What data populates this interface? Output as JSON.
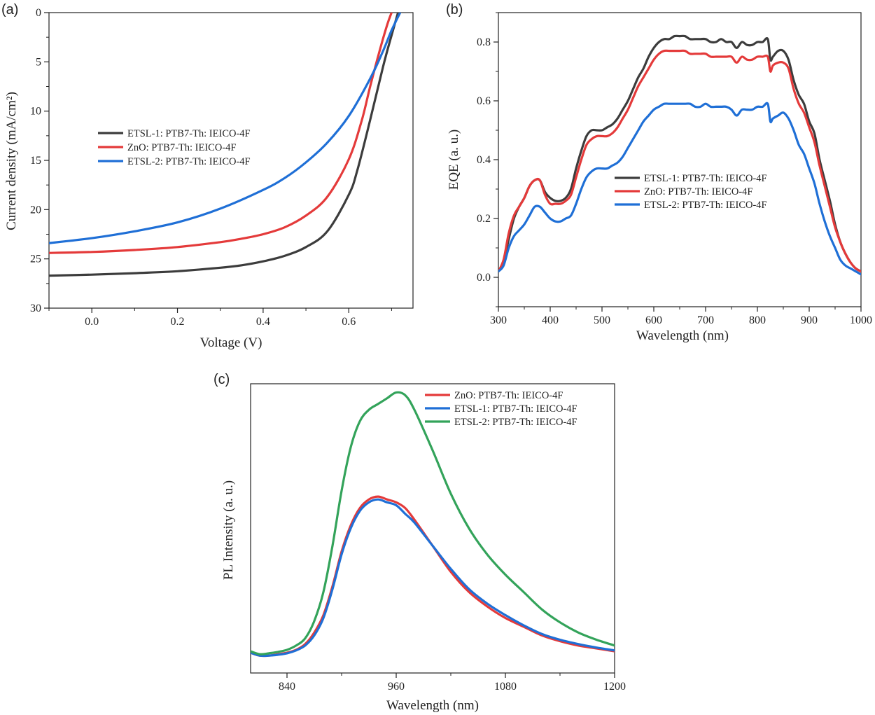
{
  "figure": {
    "colors": {
      "ETSL-1": "#3c3c3c",
      "ZnO": "#e43a3a",
      "ETSL-2": "#1f6fd6",
      "ETSL-2-PL": "#33a35a"
    }
  },
  "chart_data": [
    {
      "panel": "(a)",
      "type": "line",
      "title": "",
      "xlabel": "Voltage (V)",
      "ylabel": "Current density (mA/cm²)",
      "xlim": [
        -0.1,
        0.75
      ],
      "ylim": [
        30,
        0
      ],
      "y_inverted": true,
      "xticks": [
        "0.0",
        "0.2",
        "0.4",
        "0.6"
      ],
      "xtick_values": [
        0.0,
        0.2,
        0.4,
        0.6
      ],
      "yticks": [
        "0",
        "5",
        "10",
        "15",
        "20",
        "25",
        "30"
      ],
      "ytick_values": [
        0,
        5,
        10,
        15,
        20,
        25,
        30
      ],
      "legend_position": "middle-left",
      "series": [
        {
          "name": "ETSL-1: PTB7-Th: IEICO-4F",
          "color": "#3c3c3c",
          "x": [
            -0.1,
            0.0,
            0.1,
            0.2,
            0.3,
            0.35,
            0.4,
            0.45,
            0.5,
            0.55,
            0.6,
            0.62,
            0.65,
            0.68,
            0.7,
            0.715
          ],
          "y": [
            26.7,
            26.6,
            26.45,
            26.25,
            25.9,
            25.65,
            25.25,
            24.7,
            23.8,
            22.2,
            18.5,
            16.0,
            10.9,
            5.5,
            2.3,
            0
          ]
        },
        {
          "name": "ZnO: PTB7-Th: IEICO-4F",
          "color": "#e43a3a",
          "x": [
            -0.1,
            0.0,
            0.1,
            0.2,
            0.3,
            0.35,
            0.4,
            0.45,
            0.5,
            0.55,
            0.6,
            0.63,
            0.65,
            0.67,
            0.69,
            0.7
          ],
          "y": [
            24.4,
            24.3,
            24.1,
            23.8,
            23.3,
            22.95,
            22.5,
            21.8,
            20.6,
            18.7,
            14.9,
            11.0,
            7.5,
            4.2,
            1.2,
            0
          ]
        },
        {
          "name": "ETSL-2: PTB7-Th: IEICO-4F",
          "color": "#1f6fd6",
          "x": [
            -0.1,
            0.0,
            0.1,
            0.2,
            0.3,
            0.4,
            0.45,
            0.5,
            0.55,
            0.6,
            0.65,
            0.68,
            0.7,
            0.72
          ],
          "y": [
            23.4,
            22.9,
            22.2,
            21.3,
            19.9,
            18.0,
            16.8,
            15.2,
            13.2,
            10.5,
            6.7,
            3.9,
            1.8,
            0
          ]
        }
      ]
    },
    {
      "panel": "(b)",
      "type": "line",
      "title": "",
      "xlabel": "Wavelength (nm)",
      "ylabel": "EQE (a. u.)",
      "xlim": [
        300,
        1000
      ],
      "ylim": [
        -0.1,
        0.9
      ],
      "xticks": [
        "300",
        "400",
        "500",
        "600",
        "700",
        "800",
        "900",
        "1000"
      ],
      "xtick_values": [
        300,
        400,
        500,
        600,
        700,
        800,
        900,
        1000
      ],
      "yticks": [
        "0.0",
        "0.2",
        "0.4",
        "0.6",
        "0.8"
      ],
      "ytick_values": [
        0.0,
        0.2,
        0.4,
        0.6,
        0.8
      ],
      "legend_position": "center",
      "series": [
        {
          "name": "ETSL-1: PTB7-Th: IEICO-4F",
          "color": "#3c3c3c",
          "x": [
            300,
            310,
            320,
            330,
            340,
            350,
            360,
            370,
            380,
            390,
            400,
            410,
            420,
            430,
            440,
            450,
            460,
            470,
            480,
            490,
            500,
            510,
            520,
            530,
            540,
            550,
            560,
            570,
            580,
            590,
            600,
            610,
            620,
            630,
            640,
            650,
            660,
            670,
            680,
            690,
            700,
            710,
            720,
            730,
            740,
            750,
            760,
            770,
            780,
            790,
            800,
            810,
            820,
            825,
            830,
            840,
            850,
            860,
            870,
            880,
            890,
            900,
            910,
            920,
            930,
            940,
            950,
            960,
            970,
            980,
            990,
            1000
          ],
          "y": [
            0.02,
            0.05,
            0.13,
            0.2,
            0.24,
            0.27,
            0.31,
            0.33,
            0.33,
            0.29,
            0.27,
            0.26,
            0.26,
            0.27,
            0.3,
            0.37,
            0.43,
            0.48,
            0.5,
            0.5,
            0.5,
            0.51,
            0.52,
            0.54,
            0.57,
            0.6,
            0.64,
            0.68,
            0.71,
            0.75,
            0.78,
            0.8,
            0.81,
            0.81,
            0.82,
            0.82,
            0.82,
            0.81,
            0.81,
            0.81,
            0.81,
            0.8,
            0.8,
            0.81,
            0.8,
            0.8,
            0.78,
            0.8,
            0.79,
            0.79,
            0.8,
            0.8,
            0.81,
            0.74,
            0.75,
            0.77,
            0.77,
            0.74,
            0.67,
            0.62,
            0.59,
            0.53,
            0.49,
            0.4,
            0.33,
            0.26,
            0.18,
            0.12,
            0.08,
            0.05,
            0.03,
            0.02
          ]
        },
        {
          "name": "ZnO: PTB7-Th: IEICO-4F",
          "color": "#e43a3a",
          "x": [
            300,
            310,
            320,
            330,
            340,
            350,
            360,
            370,
            380,
            390,
            400,
            410,
            420,
            430,
            440,
            450,
            460,
            470,
            480,
            490,
            500,
            510,
            520,
            530,
            540,
            550,
            560,
            570,
            580,
            590,
            600,
            610,
            620,
            630,
            640,
            650,
            660,
            670,
            680,
            690,
            700,
            710,
            720,
            730,
            740,
            750,
            760,
            770,
            780,
            790,
            800,
            810,
            820,
            825,
            830,
            840,
            850,
            860,
            870,
            880,
            890,
            900,
            910,
            920,
            930,
            940,
            950,
            960,
            970,
            980,
            990,
            1000
          ],
          "y": [
            0.02,
            0.06,
            0.15,
            0.21,
            0.24,
            0.27,
            0.31,
            0.33,
            0.33,
            0.28,
            0.25,
            0.25,
            0.25,
            0.26,
            0.28,
            0.34,
            0.4,
            0.45,
            0.47,
            0.48,
            0.48,
            0.48,
            0.49,
            0.51,
            0.54,
            0.57,
            0.61,
            0.65,
            0.68,
            0.71,
            0.74,
            0.76,
            0.77,
            0.77,
            0.77,
            0.77,
            0.77,
            0.76,
            0.76,
            0.76,
            0.76,
            0.75,
            0.75,
            0.75,
            0.75,
            0.75,
            0.73,
            0.75,
            0.74,
            0.74,
            0.75,
            0.75,
            0.75,
            0.7,
            0.72,
            0.73,
            0.73,
            0.71,
            0.64,
            0.59,
            0.56,
            0.51,
            0.46,
            0.38,
            0.31,
            0.24,
            0.17,
            0.12,
            0.08,
            0.05,
            0.03,
            0.02
          ]
        },
        {
          "name": "ETSL-2: PTB7-Th: IEICO-4F",
          "color": "#1f6fd6",
          "x": [
            300,
            310,
            320,
            330,
            340,
            350,
            360,
            370,
            380,
            390,
            400,
            410,
            420,
            430,
            440,
            450,
            460,
            470,
            480,
            490,
            500,
            510,
            520,
            530,
            540,
            550,
            560,
            570,
            580,
            590,
            600,
            610,
            620,
            630,
            640,
            650,
            660,
            670,
            680,
            690,
            700,
            710,
            720,
            730,
            740,
            750,
            760,
            770,
            780,
            790,
            800,
            810,
            820,
            825,
            830,
            840,
            850,
            860,
            870,
            880,
            890,
            900,
            910,
            920,
            930,
            940,
            950,
            960,
            970,
            980,
            990,
            1000
          ],
          "y": [
            0.02,
            0.04,
            0.1,
            0.14,
            0.16,
            0.18,
            0.21,
            0.24,
            0.24,
            0.22,
            0.2,
            0.19,
            0.19,
            0.2,
            0.21,
            0.25,
            0.3,
            0.34,
            0.36,
            0.37,
            0.37,
            0.37,
            0.38,
            0.39,
            0.41,
            0.44,
            0.47,
            0.5,
            0.53,
            0.55,
            0.57,
            0.58,
            0.59,
            0.59,
            0.59,
            0.59,
            0.59,
            0.59,
            0.58,
            0.58,
            0.59,
            0.58,
            0.58,
            0.58,
            0.58,
            0.57,
            0.55,
            0.57,
            0.57,
            0.57,
            0.58,
            0.58,
            0.59,
            0.53,
            0.54,
            0.55,
            0.56,
            0.54,
            0.5,
            0.45,
            0.42,
            0.37,
            0.32,
            0.25,
            0.19,
            0.14,
            0.1,
            0.06,
            0.04,
            0.03,
            0.02,
            0.01
          ]
        }
      ]
    },
    {
      "panel": "(c)",
      "type": "line",
      "title": "",
      "xlabel": "Wavelength (nm)",
      "ylabel": "PL Intensity (a. u.)",
      "xlim": [
        800,
        1200
      ],
      "ylim": [
        0,
        1.0
      ],
      "y_ticks_hidden": true,
      "xticks": [
        "840",
        "960",
        "1080",
        "1200"
      ],
      "xtick_values": [
        840,
        960,
        1080,
        1200
      ],
      "legend_position": "top-right",
      "series": [
        {
          "name": "ZnO: PTB7-Th: IEICO-4F",
          "color": "#e43a3a",
          "x": [
            800,
            810,
            820,
            830,
            840,
            850,
            860,
            870,
            880,
            890,
            900,
            910,
            920,
            930,
            940,
            950,
            960,
            970,
            980,
            1000,
            1020,
            1040,
            1060,
            1080,
            1100,
            1120,
            1140,
            1160,
            1180,
            1200
          ],
          "y": [
            0.07,
            0.06,
            0.06,
            0.065,
            0.07,
            0.08,
            0.1,
            0.14,
            0.2,
            0.3,
            0.42,
            0.51,
            0.57,
            0.6,
            0.61,
            0.6,
            0.59,
            0.57,
            0.53,
            0.44,
            0.35,
            0.28,
            0.23,
            0.19,
            0.16,
            0.13,
            0.11,
            0.095,
            0.085,
            0.075
          ]
        },
        {
          "name": "ETSL-1: PTB7-Th: IEICO-4F",
          "color": "#1f6fd6",
          "x": [
            800,
            810,
            820,
            830,
            840,
            850,
            860,
            870,
            880,
            890,
            900,
            910,
            920,
            930,
            940,
            950,
            960,
            970,
            980,
            1000,
            1020,
            1040,
            1060,
            1080,
            1100,
            1120,
            1140,
            1160,
            1180,
            1200
          ],
          "y": [
            0.07,
            0.06,
            0.06,
            0.063,
            0.068,
            0.078,
            0.095,
            0.13,
            0.19,
            0.29,
            0.41,
            0.5,
            0.56,
            0.59,
            0.6,
            0.59,
            0.58,
            0.55,
            0.52,
            0.44,
            0.36,
            0.29,
            0.24,
            0.2,
            0.165,
            0.135,
            0.115,
            0.1,
            0.088,
            0.078
          ]
        },
        {
          "name": "ETSL-2: PTB7-Th: IEICO-4F",
          "color": "#33a35a",
          "x": [
            800,
            810,
            820,
            830,
            840,
            850,
            860,
            870,
            880,
            890,
            900,
            910,
            920,
            930,
            940,
            950,
            960,
            970,
            980,
            1000,
            1020,
            1040,
            1060,
            1080,
            1100,
            1120,
            1140,
            1160,
            1180,
            1200
          ],
          "y": [
            0.075,
            0.065,
            0.068,
            0.073,
            0.08,
            0.095,
            0.12,
            0.18,
            0.28,
            0.44,
            0.63,
            0.78,
            0.87,
            0.91,
            0.93,
            0.95,
            0.97,
            0.96,
            0.91,
            0.77,
            0.62,
            0.5,
            0.41,
            0.34,
            0.28,
            0.22,
            0.175,
            0.14,
            0.115,
            0.095
          ]
        }
      ]
    }
  ]
}
